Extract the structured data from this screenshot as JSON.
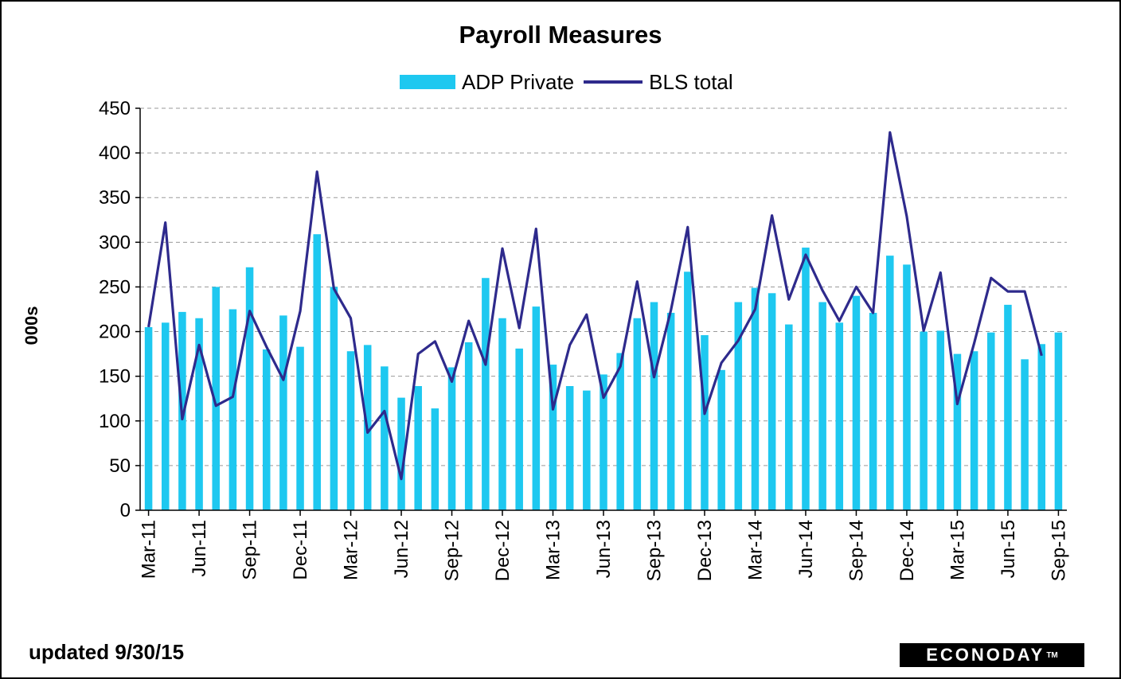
{
  "chart_data": {
    "type": "bar",
    "title": "Payroll Measures",
    "ylabel": "000s",
    "ylim": [
      0,
      450
    ],
    "yticks": [
      0,
      50,
      100,
      150,
      200,
      250,
      300,
      350,
      400,
      450
    ],
    "grid": true,
    "legend_position": "top",
    "x": [
      "Mar-11",
      "Apr-11",
      "May-11",
      "Jun-11",
      "Jul-11",
      "Aug-11",
      "Sep-11",
      "Oct-11",
      "Nov-11",
      "Dec-11",
      "Jan-12",
      "Feb-12",
      "Mar-12",
      "Apr-12",
      "May-12",
      "Jun-12",
      "Jul-12",
      "Aug-12",
      "Sep-12",
      "Oct-12",
      "Nov-12",
      "Dec-12",
      "Jan-13",
      "Feb-13",
      "Mar-13",
      "Apr-13",
      "May-13",
      "Jun-13",
      "Jul-13",
      "Aug-13",
      "Sep-13",
      "Oct-13",
      "Nov-13",
      "Dec-13",
      "Jan-14",
      "Feb-14",
      "Mar-14",
      "Apr-14",
      "May-14",
      "Jun-14",
      "Jul-14",
      "Aug-14",
      "Sep-14",
      "Oct-14",
      "Nov-14",
      "Dec-14",
      "Jan-15",
      "Feb-15",
      "Mar-15",
      "Apr-15",
      "May-15",
      "Jun-15",
      "Jul-15",
      "Aug-15",
      "Sep-15"
    ],
    "xtick_labels": [
      "Mar-11",
      "Jun-11",
      "Sep-11",
      "Dec-11",
      "Mar-12",
      "Jun-12",
      "Sep-12",
      "Dec-12",
      "Mar-13",
      "Jun-13",
      "Sep-13",
      "Dec-13",
      "Mar-14",
      "Jun-14",
      "Sep-14",
      "Dec-14",
      "Mar-15",
      "Jun-15",
      "Sep-15"
    ],
    "series": [
      {
        "name": "ADP Private",
        "type": "bar",
        "color": "#1ec8f0",
        "values": [
          205,
          210,
          222,
          215,
          250,
          225,
          272,
          180,
          218,
          183,
          309,
          250,
          178,
          185,
          161,
          126,
          139,
          114,
          160,
          188,
          260,
          215,
          181,
          228,
          163,
          139,
          134,
          152,
          176,
          215,
          233,
          221,
          267,
          196,
          157,
          233,
          249,
          243,
          208,
          294,
          233,
          210,
          240,
          221,
          285,
          275,
          200,
          201,
          175,
          178,
          199,
          230,
          169,
          186,
          199
        ]
      },
      {
        "name": "BLS total",
        "type": "line",
        "color": "#2e2a8c",
        "values": [
          205,
          322,
          102,
          185,
          117,
          127,
          223,
          183,
          146,
          223,
          379,
          248,
          215,
          87,
          111,
          35,
          175,
          189,
          144,
          212,
          163,
          293,
          204,
          315,
          113,
          185,
          219,
          126,
          161,
          256,
          149,
          224,
          317,
          108,
          165,
          190,
          225,
          330,
          236,
          286,
          246,
          212,
          250,
          221,
          423,
          329,
          201,
          266,
          119,
          187,
          260,
          245,
          245,
          173,
          null
        ]
      }
    ]
  },
  "footer": {
    "updated": "updated 9/30/15",
    "logo": "ECONODAY",
    "logo_mark": "TM"
  }
}
